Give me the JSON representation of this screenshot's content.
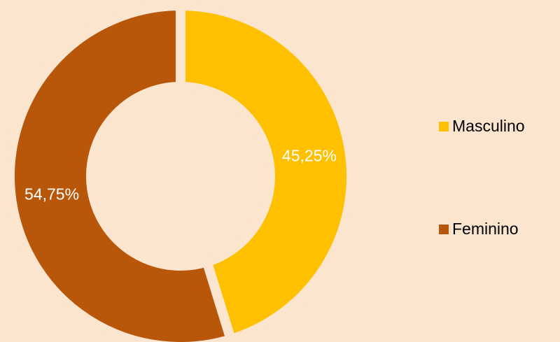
{
  "chart_data": {
    "type": "donut",
    "categories": [
      "Masculino",
      "Feminino"
    ],
    "values": [
      45.25,
      54.75
    ],
    "value_labels": [
      "45,25%",
      "54,75%"
    ],
    "colors": [
      "#ffc000",
      "#b8570a"
    ],
    "legend": "right"
  }
}
